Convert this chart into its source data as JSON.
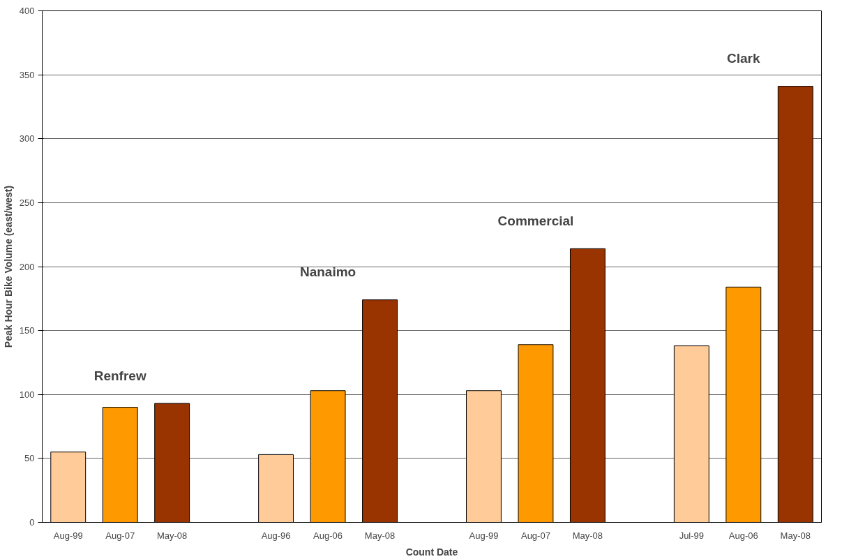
{
  "chart_data": {
    "type": "bar",
    "xlabel": "Count Date",
    "ylabel": "Peak Hour Bike Volume (east/west)",
    "categories": [
      "Aug-99",
      "Aug-07",
      "May-08",
      null,
      "Aug-96",
      "Aug-06",
      "May-08",
      null,
      "Aug-99",
      "Aug-07",
      "May-08",
      null,
      "Jul-99",
      "Aug-06",
      "May-08"
    ],
    "values": [
      55,
      90,
      93,
      null,
      53,
      103,
      174,
      null,
      103,
      139,
      214,
      null,
      138,
      184,
      341
    ],
    "colors": [
      "#ffcc99",
      "#ff9900",
      "#993300",
      "#ffffff",
      "#ffcc99",
      "#ff9900",
      "#993300",
      "#ffffff",
      "#ffcc99",
      "#ff9900",
      "#993300",
      "#ffffff",
      "#ffcc99",
      "#ff9900",
      "#993300"
    ],
    "ylim": [
      0,
      400
    ],
    "yticks": [
      0,
      50,
      100,
      150,
      200,
      250,
      300,
      350,
      400
    ],
    "grid": "y",
    "annotations": [
      "Renfrew",
      "Nanaimo",
      "Commercial",
      "Clark"
    ]
  }
}
